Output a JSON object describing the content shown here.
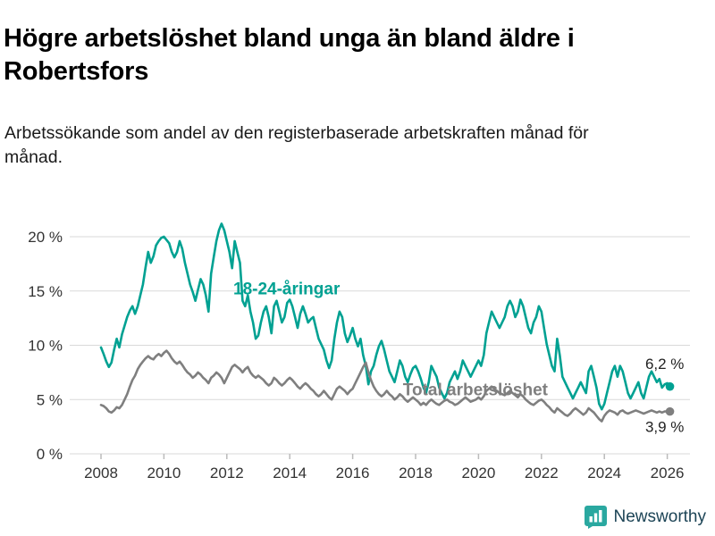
{
  "header": {
    "title": "Högre arbetslöshet bland unga än bland äldre i Robertsfors",
    "subtitle": "Arbetssökande som andel av den registerbaserade arbetskraften månad för månad."
  },
  "footer": {
    "brand": "Newsworthy"
  },
  "colors": {
    "youth": "#00a192",
    "total": "#7f7f7f",
    "grid": "#d9d9d9",
    "axis": "#bbbbbb",
    "annotation": "#222222",
    "brand_icon": "#2aa8a0",
    "brand_text": "#1c4456"
  },
  "chart_data": {
    "type": "line",
    "title": "Högre arbetslöshet bland unga än bland äldre i Robertsfors",
    "xlabel": "",
    "ylabel": "",
    "x_start_year": 2008,
    "x_interval_months": 1,
    "x_ticks": [
      2008,
      2010,
      2012,
      2014,
      2016,
      2018,
      2020,
      2022,
      2024,
      2026
    ],
    "y_ticks": [
      0,
      5,
      10,
      15,
      20
    ],
    "y_tick_suffix": " %",
    "ylim": [
      0,
      22
    ],
    "xlim": [
      2007.2,
      2026.8
    ],
    "grid": true,
    "legend_position": "inline-labels",
    "series": [
      {
        "name": "18-24-åringar",
        "color_key": "youth",
        "end_label": "6,2 %",
        "values": [
          9.8,
          9.2,
          8.5,
          8.0,
          8.4,
          9.6,
          10.6,
          9.8,
          11.0,
          11.8,
          12.6,
          13.2,
          13.6,
          12.9,
          13.6,
          14.6,
          15.6,
          17.2,
          18.6,
          17.6,
          18.2,
          19.2,
          19.6,
          19.9,
          20.0,
          19.7,
          19.4,
          18.6,
          18.1,
          18.6,
          19.6,
          18.9,
          17.6,
          16.6,
          15.6,
          14.9,
          14.1,
          15.1,
          16.1,
          15.6,
          14.6,
          13.1,
          16.6,
          18.1,
          19.6,
          20.6,
          21.2,
          20.6,
          19.6,
          18.6,
          17.1,
          19.6,
          18.6,
          17.6,
          14.1,
          13.6,
          14.6,
          13.1,
          12.1,
          10.6,
          10.9,
          12.1,
          13.1,
          13.6,
          12.6,
          11.1,
          13.6,
          14.1,
          13.1,
          12.1,
          12.6,
          13.9,
          14.2,
          13.6,
          12.6,
          11.6,
          12.9,
          13.6,
          12.9,
          12.1,
          12.4,
          12.6,
          11.6,
          10.6,
          10.1,
          9.6,
          8.6,
          7.9,
          8.6,
          10.6,
          12.1,
          13.1,
          12.6,
          11.1,
          10.3,
          10.9,
          11.6,
          10.6,
          9.9,
          10.6,
          9.1,
          8.1,
          6.4,
          7.6,
          8.1,
          9.1,
          9.9,
          10.4,
          9.6,
          8.6,
          7.6,
          7.1,
          6.6,
          7.6,
          8.6,
          8.1,
          7.1,
          6.6,
          7.3,
          7.9,
          8.1,
          7.6,
          6.9,
          6.1,
          5.6,
          6.6,
          8.1,
          7.6,
          7.1,
          6.1,
          5.6,
          5.1,
          5.6,
          6.6,
          7.1,
          7.6,
          6.9,
          7.6,
          8.6,
          8.1,
          7.6,
          7.1,
          7.6,
          8.1,
          8.6,
          8.1,
          9.1,
          11.1,
          12.1,
          13.1,
          12.6,
          12.1,
          11.6,
          12.1,
          12.6,
          13.6,
          14.1,
          13.6,
          12.6,
          13.1,
          14.2,
          13.6,
          12.6,
          11.6,
          11.1,
          12.1,
          12.6,
          13.6,
          13.1,
          11.6,
          10.1,
          9.1,
          8.1,
          7.6,
          10.6,
          9.1,
          7.1,
          6.6,
          6.1,
          5.6,
          5.1,
          5.6,
          6.1,
          6.6,
          6.1,
          5.6,
          7.6,
          8.1,
          7.1,
          6.1,
          4.6,
          4.1,
          4.6,
          5.6,
          6.6,
          7.6,
          8.1,
          7.1,
          8.1,
          7.6,
          6.6,
          5.6,
          5.1,
          5.6,
          6.1,
          6.6,
          5.6,
          5.1,
          6.1,
          7.1,
          7.6,
          7.1,
          6.6,
          6.9,
          6.1,
          6.4,
          6.5,
          6.2
        ]
      },
      {
        "name": "Total arbetslöshet",
        "color_key": "total",
        "end_label": "3,9 %",
        "values": [
          4.5,
          4.4,
          4.2,
          3.9,
          3.8,
          4.0,
          4.3,
          4.2,
          4.5,
          5.0,
          5.5,
          6.2,
          6.8,
          7.2,
          7.8,
          8.2,
          8.5,
          8.8,
          9.0,
          8.8,
          8.7,
          9.0,
          9.2,
          9.0,
          9.3,
          9.5,
          9.2,
          8.8,
          8.5,
          8.3,
          8.5,
          8.2,
          7.8,
          7.5,
          7.3,
          7.0,
          7.2,
          7.5,
          7.3,
          7.0,
          6.8,
          6.5,
          7.0,
          7.2,
          7.5,
          7.3,
          7.0,
          6.5,
          7.0,
          7.5,
          8.0,
          8.2,
          8.0,
          7.8,
          7.5,
          7.8,
          8.0,
          7.5,
          7.2,
          7.0,
          7.2,
          7.0,
          6.8,
          6.5,
          6.3,
          6.5,
          7.0,
          6.8,
          6.5,
          6.3,
          6.5,
          6.8,
          7.0,
          6.8,
          6.5,
          6.2,
          6.0,
          6.3,
          6.5,
          6.3,
          6.0,
          5.8,
          5.5,
          5.3,
          5.5,
          5.8,
          5.5,
          5.2,
          5.0,
          5.5,
          6.0,
          6.2,
          6.0,
          5.8,
          5.5,
          5.8,
          6.0,
          6.5,
          7.0,
          7.5,
          8.0,
          8.4,
          7.5,
          6.8,
          6.2,
          5.8,
          5.5,
          5.3,
          5.5,
          5.8,
          5.5,
          5.3,
          5.0,
          5.2,
          5.5,
          5.3,
          5.0,
          4.8,
          5.0,
          5.2,
          5.0,
          4.8,
          4.5,
          4.7,
          4.5,
          4.8,
          5.0,
          4.8,
          4.6,
          4.5,
          4.7,
          4.9,
          5.0,
          4.8,
          4.7,
          4.5,
          4.6,
          4.8,
          5.0,
          5.2,
          5.0,
          4.8,
          4.9,
          5.0,
          5.2,
          5.0,
          5.3,
          5.8,
          6.0,
          6.2,
          6.0,
          5.8,
          5.6,
          5.5,
          5.4,
          5.6,
          5.8,
          5.6,
          5.4,
          5.2,
          5.5,
          5.3,
          5.0,
          4.8,
          4.6,
          4.5,
          4.7,
          4.9,
          5.0,
          4.8,
          4.5,
          4.3,
          4.0,
          3.8,
          4.2,
          4.0,
          3.8,
          3.6,
          3.5,
          3.7,
          4.0,
          4.2,
          4.0,
          3.8,
          3.6,
          3.8,
          4.2,
          4.0,
          3.8,
          3.5,
          3.2,
          3.0,
          3.5,
          3.8,
          4.0,
          3.9,
          3.8,
          3.6,
          3.9,
          4.0,
          3.8,
          3.7,
          3.8,
          3.9,
          4.0,
          3.9,
          3.8,
          3.7,
          3.8,
          3.9,
          4.0,
          3.9,
          3.8,
          3.9,
          3.8,
          3.9,
          3.9,
          3.9
        ]
      }
    ],
    "annotations": [
      {
        "text": "18-24-åringar",
        "x": 2013.9,
        "y": 14.7,
        "color_key": "youth",
        "bold": true,
        "size": 19,
        "anchor": "middle"
      },
      {
        "text": "Total arbetslöshet",
        "x": 2019.9,
        "y": 5.4,
        "color_key": "total",
        "bold": true,
        "size": 19,
        "anchor": "middle"
      },
      {
        "text": "6,2 %",
        "x": 2025.3,
        "y": 7.8,
        "color_key": "annotation",
        "bold": false,
        "size": 17,
        "anchor": "start"
      },
      {
        "text": "3,9 %",
        "x": 2025.3,
        "y": 2.0,
        "color_key": "annotation",
        "bold": false,
        "size": 17,
        "anchor": "start"
      }
    ]
  }
}
